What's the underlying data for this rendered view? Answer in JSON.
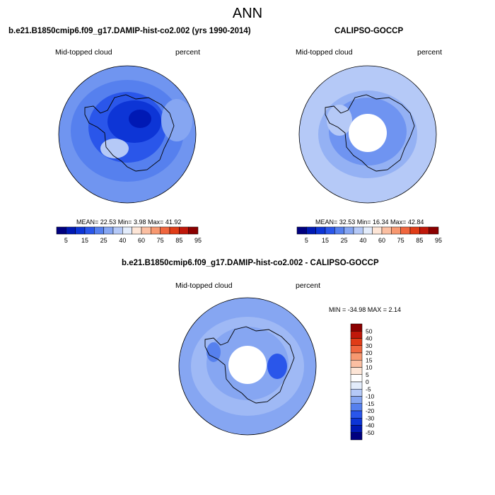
{
  "main_title": "ANN",
  "panels": [
    {
      "title": "b.e21.B1850cmip6.f09_g17.DAMIP-hist-co2.002 (yrs 1990-2014)",
      "variable": "Mid-topped cloud",
      "units": "percent",
      "stats_label": "MEAN=  22.53  Min=   3.98  Max=  41.92"
    },
    {
      "title": "CALIPSO-GOCCP",
      "variable": "Mid-topped cloud",
      "units": "percent",
      "stats_label": "MEAN=  32.53  Min=  16.34  Max=  42.84"
    },
    {
      "title": "b.e21.B1850cmip6.f09_g17.DAMIP-hist-co2.002 - CALIPSO-GOCCP",
      "variable": "Mid-topped cloud",
      "units": "percent",
      "stats_label": "MIN = -34.98 MAX =   2.14"
    }
  ],
  "colorbar_main": {
    "labels": [
      "5",
      "15",
      "25",
      "40",
      "60",
      "75",
      "85",
      "95"
    ],
    "colors": [
      "#00007f",
      "#0019b4",
      "#0d35d6",
      "#2a56ea",
      "#5680ee",
      "#86a6f2",
      "#b5c9f7",
      "#e3ecfb",
      "#fde5d6",
      "#fbbfa2",
      "#f79870",
      "#f0663e",
      "#e03c17",
      "#c0180a",
      "#8b0000"
    ]
  },
  "colorbar_diff": {
    "labels": [
      "50",
      "40",
      "30",
      "20",
      "15",
      "10",
      "5",
      "0",
      "-5",
      "-10",
      "-15",
      "-20",
      "-30",
      "-40",
      "-50"
    ],
    "colors": [
      "#8b0000",
      "#c0180a",
      "#e03c17",
      "#f0663e",
      "#f79870",
      "#fbbfa2",
      "#fde5d6",
      "#ffffff",
      "#e3ecfb",
      "#b5c9f7",
      "#86a6f2",
      "#5680ee",
      "#2a56ea",
      "#0d35d6",
      "#0019b4",
      "#00007f"
    ]
  },
  "chart_data": [
    {
      "type": "heatmap",
      "title": "b.e21.B1850cmip6.f09_g17.DAMIP-hist-co2.002 (yrs 1990-2014)",
      "projection": "south polar stereographic",
      "units": "percent",
      "mean": 22.53,
      "min": 3.98,
      "max": 41.92
    },
    {
      "type": "heatmap",
      "title": "CALIPSO-GOCCP",
      "projection": "south polar stereographic",
      "units": "percent",
      "mean": 32.53,
      "min": 16.34,
      "max": 42.84
    },
    {
      "type": "heatmap",
      "title": "b.e21.B1850cmip6.f09_g17.DAMIP-hist-co2.002 - CALIPSO-GOCCP",
      "projection": "south polar stereographic",
      "units": "percent",
      "min": -34.98,
      "max": 2.14
    }
  ]
}
